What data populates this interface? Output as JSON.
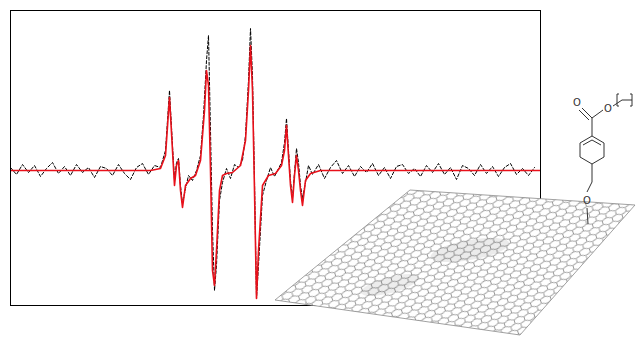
{
  "chart_data": {
    "type": "line",
    "xlim": [
      10,
      540
    ],
    "ylim": [
      -135,
      160
    ],
    "tick_labels": false,
    "grid": false,
    "series": [
      {
        "color": "#000000",
        "line_style": "dashed",
        "x": [
          10,
          16,
          22,
          28,
          34,
          40,
          46,
          52,
          58,
          64,
          70,
          76,
          82,
          88,
          94,
          100,
          106,
          112,
          118,
          124,
          130,
          136,
          142,
          148,
          154,
          160,
          165,
          169,
          172,
          174,
          176,
          178,
          180,
          182,
          185,
          188,
          192,
          196,
          200,
          203,
          206,
          208,
          210,
          212,
          214,
          216,
          219,
          222,
          226,
          230,
          234,
          238,
          242,
          245,
          248,
          250,
          252,
          254,
          256,
          258,
          262,
          266,
          270,
          274,
          278,
          281,
          284,
          286,
          288,
          290,
          292,
          294,
          296,
          298,
          300,
          302,
          305,
          308,
          312,
          318,
          324,
          330,
          336,
          342,
          348,
          354,
          360,
          366,
          372,
          378,
          384,
          390,
          396,
          402,
          408,
          414,
          420,
          426,
          432,
          438,
          444,
          450,
          456,
          462,
          468,
          474,
          480,
          486,
          492,
          498,
          504,
          510,
          516,
          522,
          528,
          534
        ],
        "values": [
          3,
          -4,
          6,
          -2,
          5,
          -6,
          2,
          8,
          -3,
          4,
          -5,
          6,
          -2,
          3,
          -7,
          4,
          2,
          -5,
          6,
          -3,
          -9,
          3,
          7,
          -4,
          5,
          3,
          20,
          80,
          25,
          -10,
          8,
          12,
          -15,
          -33,
          -18,
          -5,
          -10,
          0,
          15,
          55,
          110,
          135,
          40,
          -60,
          -120,
          -95,
          -30,
          -12,
          2,
          -8,
          6,
          3,
          10,
          35,
          90,
          142,
          95,
          -10,
          -128,
          -95,
          -25,
          -10,
          3,
          -6,
          2,
          8,
          28,
          52,
          20,
          -10,
          -28,
          -2,
          22,
          8,
          -15,
          -28,
          -12,
          5,
          -4,
          6,
          -8,
          3,
          10,
          -3,
          5,
          -6,
          4,
          -2,
          7,
          -5,
          3,
          -8,
          4,
          6,
          -3,
          2,
          -6,
          5,
          -2,
          7,
          -4,
          3,
          -9,
          5,
          2,
          -5,
          6,
          -3,
          4,
          -6,
          3,
          7,
          -4,
          2,
          -5,
          3
        ]
      },
      {
        "color": "#e8101a",
        "line_style": "solid",
        "x": [
          10,
          150,
          160,
          165,
          169,
          172,
          174,
          176,
          178,
          180,
          182,
          185,
          190,
          195,
          200,
          204,
          206,
          208,
          210,
          212,
          214,
          216,
          219,
          222,
          226,
          232,
          240,
          245,
          248,
          250,
          252,
          254,
          256,
          258,
          262,
          268,
          275,
          281,
          284,
          286,
          288,
          290,
          292,
          294,
          296,
          298,
          300,
          302,
          305,
          310,
          320,
          540
        ],
        "values": [
          0,
          0,
          2,
          15,
          73,
          20,
          -15,
          5,
          10,
          -20,
          -37,
          -15,
          -8,
          -5,
          10,
          60,
          100,
          85,
          0,
          -100,
          -115,
          -80,
          -20,
          -5,
          -3,
          -2,
          5,
          30,
          80,
          125,
          80,
          -20,
          -128,
          -80,
          -15,
          -5,
          -3,
          5,
          20,
          45,
          15,
          -15,
          -32,
          -5,
          15,
          0,
          -20,
          -35,
          -10,
          -3,
          0,
          0
        ]
      }
    ]
  },
  "illustration": {
    "structure_labels": [
      "O",
      "O",
      "O"
    ]
  }
}
